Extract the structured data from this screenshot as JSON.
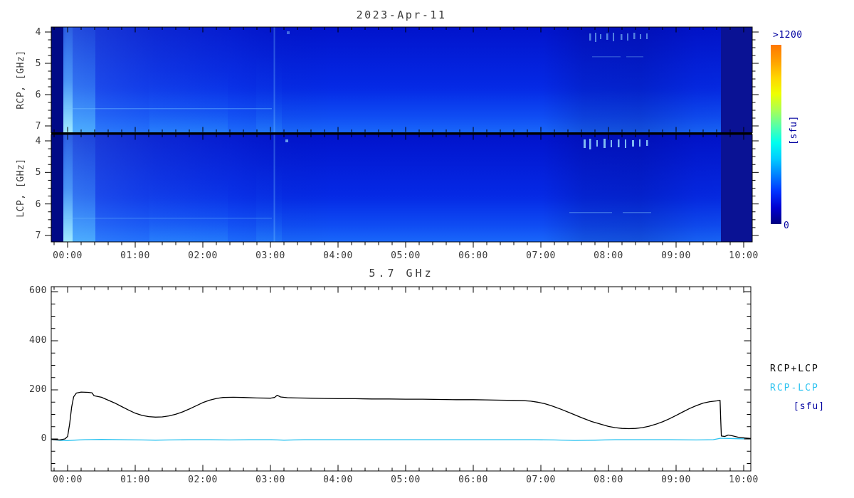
{
  "spectrogram": {
    "title": "2023-Apr-11",
    "rcp_axis_label": "RCP, [GHz]",
    "lcp_axis_label": "LCP, [GHz]",
    "freq_ticks": [
      "4",
      "5",
      "6",
      "7"
    ],
    "colorbar": {
      "max_label": ">1200",
      "unit_label": "[sfu]",
      "min_label": "0",
      "colors": [
        "#000080",
        "#0000D0",
        "#0033FF",
        "#0080FF",
        "#00CCFF",
        "#00FFEE",
        "#55FFAA",
        "#AAFF55",
        "#EEFF00",
        "#FFD500",
        "#FFA000",
        "#FF7700"
      ]
    }
  },
  "axes": {
    "time_ticks": [
      "00:00",
      "01:00",
      "02:00",
      "03:00",
      "04:00",
      "05:00",
      "06:00",
      "07:00",
      "08:00",
      "09:00",
      "10:00"
    ]
  },
  "timeseries": {
    "title": "5.7 GHz",
    "y_ticks": [
      "600",
      "400",
      "200",
      "0"
    ],
    "legend": {
      "sum_label": "RCP+LCP",
      "diff_label": "RCP-LCP",
      "unit_label": "[sfu]"
    }
  },
  "colors": {
    "line_sum": "#000000",
    "line_diff": "#29C2F0",
    "unit_text": "#0000A0",
    "axis_text": "#3a3a3a"
  },
  "chart_data": [
    {
      "type": "heatmap",
      "title": "2023-Apr-11",
      "panels": [
        {
          "ylabel": "RCP, [GHz]",
          "y_ticks": [
            4,
            5,
            6,
            7
          ]
        },
        {
          "ylabel": "LCP, [GHz]",
          "y_ticks": [
            4,
            5,
            6,
            7
          ]
        }
      ],
      "x_ticks": [
        "00:00",
        "01:00",
        "02:00",
        "03:00",
        "04:00",
        "05:00",
        "06:00",
        "07:00",
        "08:00",
        "09:00",
        "10:00"
      ],
      "y_range_ghz": [
        4,
        7
      ],
      "value_range_sfu": [
        0,
        1200
      ],
      "colorbar": {
        "min_label": "0",
        "max_label": ">1200",
        "unit": "[sfu]"
      },
      "notes": "Quiet-sun blue background; brighter flux toward 7 GHz; bright column near 00:00-00:25; dark navy bands before 00:00 and after 09:45; faint interference speckles 07:45-08:40 near 4 GHz."
    },
    {
      "type": "line",
      "title": "5.7 GHz",
      "xlabel_ticks": [
        "00:00",
        "01:00",
        "02:00",
        "03:00",
        "04:00",
        "05:00",
        "06:00",
        "07:00",
        "08:00",
        "09:00",
        "10:00"
      ],
      "x_unit": "hours",
      "y_unit": "sfu",
      "ylim": [
        -130,
        620
      ],
      "y_ticks": [
        0,
        200,
        400,
        600
      ],
      "series": [
        {
          "name": "RCP+LCP",
          "color": "#000000",
          "points": [
            [
              -0.24,
              -2
            ],
            [
              -0.12,
              -4
            ],
            [
              -0.04,
              0
            ],
            [
              0,
              10
            ],
            [
              0.03,
              60
            ],
            [
              0.06,
              130
            ],
            [
              0.09,
              172
            ],
            [
              0.13,
              187
            ],
            [
              0.2,
              191
            ],
            [
              0.3,
              190
            ],
            [
              0.36,
              188
            ],
            [
              0.39,
              176
            ],
            [
              0.5,
              170
            ],
            [
              0.6,
              158
            ],
            [
              0.7,
              146
            ],
            [
              0.8,
              132
            ],
            [
              0.9,
              118
            ],
            [
              1,
              105
            ],
            [
              1.1,
              96
            ],
            [
              1.2,
              91
            ],
            [
              1.3,
              89
            ],
            [
              1.4,
              90
            ],
            [
              1.5,
              94
            ],
            [
              1.6,
              101
            ],
            [
              1.7,
              110
            ],
            [
              1.8,
              122
            ],
            [
              1.9,
              135
            ],
            [
              2,
              148
            ],
            [
              2.1,
              158
            ],
            [
              2.2,
              165
            ],
            [
              2.3,
              169
            ],
            [
              2.45,
              170
            ],
            [
              2.6,
              169
            ],
            [
              2.8,
              167
            ],
            [
              3,
              166
            ],
            [
              3.06,
              169
            ],
            [
              3.1,
              178
            ],
            [
              3.15,
              171
            ],
            [
              3.25,
              168
            ],
            [
              3.4,
              167
            ],
            [
              3.6,
              166
            ],
            [
              3.8,
              165
            ],
            [
              4,
              164
            ],
            [
              4.25,
              164
            ],
            [
              4.5,
              163
            ],
            [
              4.75,
              163
            ],
            [
              5,
              162
            ],
            [
              5.25,
              162
            ],
            [
              5.5,
              161
            ],
            [
              5.75,
              160
            ],
            [
              6,
              160
            ],
            [
              6.2,
              159
            ],
            [
              6.4,
              158
            ],
            [
              6.6,
              157
            ],
            [
              6.75,
              156
            ],
            [
              6.85,
              154
            ],
            [
              6.95,
              150
            ],
            [
              7.05,
              144
            ],
            [
              7.15,
              136
            ],
            [
              7.3,
              121
            ],
            [
              7.45,
              104
            ],
            [
              7.6,
              87
            ],
            [
              7.75,
              71
            ],
            [
              7.9,
              59
            ],
            [
              8,
              51
            ],
            [
              8.1,
              46
            ],
            [
              8.2,
              43
            ],
            [
              8.3,
              42
            ],
            [
              8.4,
              43
            ],
            [
              8.5,
              46
            ],
            [
              8.6,
              52
            ],
            [
              8.7,
              60
            ],
            [
              8.8,
              70
            ],
            [
              8.9,
              82
            ],
            [
              9,
              96
            ],
            [
              9.1,
              110
            ],
            [
              9.2,
              124
            ],
            [
              9.3,
              136
            ],
            [
              9.4,
              146
            ],
            [
              9.5,
              152
            ],
            [
              9.6,
              155
            ],
            [
              9.65,
              157
            ],
            [
              9.66,
              80
            ],
            [
              9.67,
              12
            ],
            [
              9.72,
              10
            ],
            [
              9.77,
              16
            ],
            [
              9.83,
              13
            ],
            [
              9.92,
              7
            ],
            [
              10.02,
              4
            ],
            [
              10.1,
              2
            ]
          ]
        },
        {
          "name": "RCP-LCP",
          "color": "#29C2F0",
          "points": [
            [
              -0.24,
              -2
            ],
            [
              -0.1,
              -6
            ],
            [
              0,
              -7
            ],
            [
              0.1,
              -5
            ],
            [
              0.25,
              -3
            ],
            [
              0.5,
              -2
            ],
            [
              0.8,
              -3
            ],
            [
              1.1,
              -4
            ],
            [
              1.3,
              -5
            ],
            [
              1.5,
              -4
            ],
            [
              1.8,
              -3
            ],
            [
              2.1,
              -3
            ],
            [
              2.4,
              -4
            ],
            [
              2.7,
              -3
            ],
            [
              3,
              -3
            ],
            [
              3.2,
              -5
            ],
            [
              3.5,
              -3
            ],
            [
              3.8,
              -3
            ],
            [
              4.1,
              -3
            ],
            [
              4.5,
              -3
            ],
            [
              4.9,
              -3
            ],
            [
              5.3,
              -3
            ],
            [
              5.7,
              -3
            ],
            [
              6.1,
              -3
            ],
            [
              6.5,
              -3
            ],
            [
              6.9,
              -3
            ],
            [
              7.2,
              -4
            ],
            [
              7.5,
              -6
            ],
            [
              7.8,
              -5
            ],
            [
              8.1,
              -3
            ],
            [
              8.5,
              -3
            ],
            [
              8.9,
              -3
            ],
            [
              9.3,
              -4
            ],
            [
              9.55,
              -3
            ],
            [
              9.66,
              3
            ],
            [
              9.78,
              2
            ],
            [
              9.9,
              1
            ],
            [
              10.1,
              0
            ]
          ]
        }
      ],
      "legend_position": "right"
    }
  ]
}
